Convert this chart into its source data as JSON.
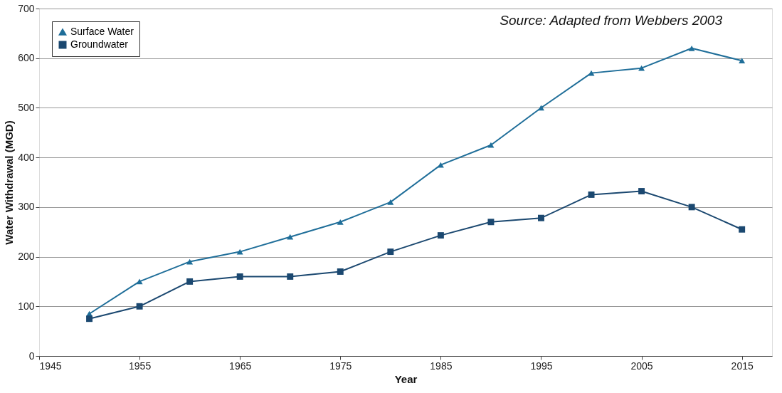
{
  "chart_data": {
    "type": "line",
    "xlabel": "Year",
    "ylabel": "Water Withdrawal (MGD)",
    "annotations": [
      "Source: Adapted from Webbers 2003"
    ],
    "x": [
      1950,
      1955,
      1960,
      1965,
      1970,
      1975,
      1980,
      1985,
      1990,
      1995,
      2000,
      2005,
      2010,
      2015
    ],
    "series": [
      {
        "name": "Surface Water",
        "color": "#1f6e99",
        "marker": "triangle",
        "values": [
          85,
          150,
          190,
          210,
          240,
          270,
          310,
          385,
          425,
          500,
          570,
          580,
          620,
          595
        ]
      },
      {
        "name": "Groundwater",
        "color": "#1b4870",
        "marker": "square",
        "values": [
          75,
          100,
          150,
          160,
          160,
          170,
          210,
          243,
          270,
          278,
          325,
          332,
          300,
          255
        ]
      }
    ],
    "xlim": [
      1945,
      2018
    ],
    "xticks": [
      1945,
      1955,
      1965,
      1975,
      1985,
      1995,
      2005,
      2015
    ],
    "ylim": [
      0,
      700
    ],
    "yticks": [
      0,
      100,
      200,
      300,
      400,
      500,
      600,
      700
    ],
    "grid": "y",
    "legend": "top left",
    "line_style": "solid"
  }
}
